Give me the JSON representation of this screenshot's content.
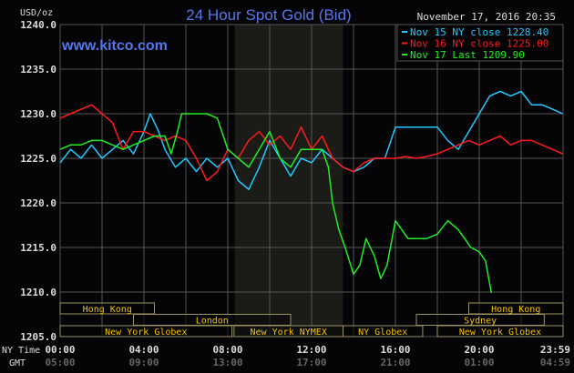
{
  "chart_data": {
    "type": "line",
    "title": "24 Hour Spot Gold (Bid)",
    "watermark": "www.kitco.com",
    "timestamp": "November 17, 2016 20:35",
    "ylabel": "USD/oz",
    "ylim": [
      1205,
      1240
    ],
    "yticks": [
      "1240.0",
      "1235.0",
      "1230.0",
      "1225.0",
      "1220.0",
      "1215.0",
      "1210.0",
      "1205.0"
    ],
    "xlim_hours": [
      0,
      24
    ],
    "x_row_labels": {
      "ny": "NY Time",
      "gmt": "GMT"
    },
    "xticks_ny": [
      "00:00",
      "04:00",
      "08:00",
      "12:00",
      "16:00",
      "20:00",
      "23:59"
    ],
    "xticks_gmt": [
      "05:00",
      "09:00",
      "13:00",
      "17:00",
      "21:00",
      "01:00",
      "04:59"
    ],
    "grid": true,
    "legend_placement": "top-right",
    "colors": {
      "background": "#050507",
      "grid": "#555555",
      "title": "#5577ee",
      "session_text": "#f5c400",
      "session_border": "#9a9460",
      "shade": "#1b1c18"
    },
    "shaded_session_hours": [
      8.33,
      13.5
    ],
    "sessions": [
      {
        "label": "Hong Kong",
        "row": 0,
        "start": 0,
        "end": 4.5
      },
      {
        "label": "Hong Kong",
        "row": 0,
        "start": 19.5,
        "end": 24
      },
      {
        "label": "London",
        "row": 1,
        "start": 3.5,
        "end": 11
      },
      {
        "label": "Sydney",
        "row": 1,
        "start": 17,
        "end": 23.1
      },
      {
        "label": "New York Globex",
        "row": 2,
        "start": 0,
        "end": 8.2
      },
      {
        "label": "New York NYMEX",
        "row": 2,
        "start": 8.3,
        "end": 13.5
      },
      {
        "label": "NY Globex",
        "row": 2,
        "start": 13.5,
        "end": 17.3
      },
      {
        "label": "New York Globex",
        "row": 2,
        "start": 18,
        "end": 24
      }
    ],
    "series": [
      {
        "name": "Nov 15 NY close 1228.40",
        "color": "#22c8ff",
        "x": [
          0,
          0.5,
          1,
          1.5,
          2,
          2.5,
          3,
          3.5,
          4,
          4.3,
          4.7,
          5,
          5.5,
          6,
          6.5,
          7,
          7.5,
          8,
          8.5,
          9,
          9.5,
          10,
          10.5,
          11,
          11.5,
          12,
          12.5,
          13,
          13.5,
          14,
          14.5,
          15,
          15.5,
          16,
          16.5,
          17,
          17.5,
          18,
          18.5,
          19,
          19.5,
          20,
          20.5,
          21,
          21.5,
          22,
          22.5,
          23,
          23.5,
          23.98
        ],
        "y": [
          1224.5,
          1226,
          1225,
          1226.5,
          1225,
          1226,
          1227,
          1225.5,
          1228,
          1230,
          1228,
          1226,
          1224,
          1225,
          1223.5,
          1225,
          1224,
          1225,
          1222.5,
          1221.5,
          1224,
          1227,
          1225,
          1223,
          1225,
          1224.5,
          1226,
          1225,
          1224,
          1223.5,
          1224,
          1225,
          1225,
          1228.5,
          1228.5,
          1228.5,
          1228.5,
          1228.5,
          1227,
          1226,
          1228,
          1230,
          1232,
          1232.5,
          1232,
          1232.5,
          1231,
          1231,
          1230.5,
          1230
        ]
      },
      {
        "name": "Nov 16 NY close 1225.00",
        "color": "#ff1a1a",
        "x": [
          0,
          0.5,
          1,
          1.5,
          2,
          2.5,
          3,
          3.5,
          4,
          4.5,
          5,
          5.5,
          6,
          6.5,
          7,
          7.5,
          8,
          8.5,
          9,
          9.5,
          10,
          10.5,
          11,
          11.5,
          12,
          12.5,
          13,
          13.5,
          14,
          14.5,
          15,
          15.5,
          16,
          16.5,
          17,
          17.5,
          18,
          18.5,
          19,
          19.5,
          20,
          20.5,
          21,
          21.5,
          22,
          22.5,
          23,
          23.5,
          23.98
        ],
        "y": [
          1229.5,
          1230,
          1230.5,
          1231,
          1230,
          1229,
          1226,
          1228,
          1228,
          1227.5,
          1227,
          1227.5,
          1227,
          1225,
          1222.5,
          1223.5,
          1226,
          1225,
          1227,
          1228,
          1226.5,
          1227.5,
          1226,
          1228.5,
          1226,
          1227.5,
          1225,
          1224,
          1223.5,
          1224.5,
          1225,
          1225,
          1225,
          1225.2,
          1225,
          1225.2,
          1225.5,
          1226,
          1226.5,
          1227,
          1226.5,
          1227,
          1227.5,
          1226.5,
          1227,
          1227,
          1226.5,
          1226,
          1225.5
        ]
      },
      {
        "name": "Nov 17 Last 1209.90",
        "color": "#22ee22",
        "x": [
          0,
          0.5,
          1,
          1.5,
          2,
          2.5,
          3,
          3.5,
          4,
          4.5,
          5,
          5.3,
          5.6,
          5.8,
          6.5,
          7,
          7.5,
          8,
          8.5,
          9,
          9.5,
          10,
          10.5,
          11,
          11.5,
          12,
          12.5,
          12.8,
          13,
          13.3,
          13.6,
          14,
          14.3,
          14.6,
          15,
          15.3,
          15.6,
          16,
          16.3,
          16.6,
          17,
          17.5,
          18,
          18.5,
          19,
          19.3,
          19.6,
          20,
          20.3,
          20.58
        ],
        "y": [
          1226,
          1226.5,
          1226.5,
          1227,
          1227,
          1226.5,
          1226,
          1226.5,
          1227,
          1227.5,
          1227.5,
          1225.5,
          1228,
          1230,
          1230,
          1230,
          1229.5,
          1226,
          1225,
          1224,
          1226,
          1228,
          1225,
          1224,
          1226,
          1226,
          1226,
          1224,
          1220,
          1217,
          1215,
          1212,
          1213,
          1216,
          1214,
          1211.5,
          1213,
          1218,
          1217,
          1216,
          1216,
          1216,
          1216.5,
          1218,
          1217,
          1216,
          1215,
          1214.5,
          1213.5,
          1209.9
        ]
      }
    ]
  }
}
